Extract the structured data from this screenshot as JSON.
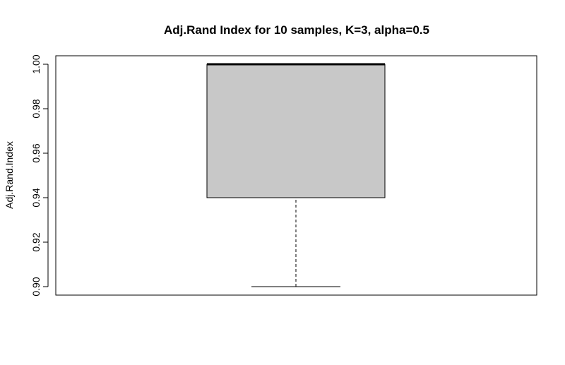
{
  "chart_data": {
    "type": "boxplot",
    "title": "Adj.Rand Index for 10 samples, K=3, alpha=0.5",
    "xlabel": "",
    "ylabel": "Adj.Rand.Index",
    "ylim": [
      0.9,
      1.0
    ],
    "yticks": [
      0.9,
      0.92,
      0.94,
      0.96,
      0.98,
      1.0
    ],
    "ytick_labels": [
      "0.90",
      "0.92",
      "0.94",
      "0.96",
      "0.98",
      "1.00"
    ],
    "box": {
      "min": 0.9,
      "q1": 0.94,
      "median": 1.0,
      "q3": 1.0,
      "max": 1.0
    },
    "box_fill": "#c8c8c8",
    "grid": false
  }
}
